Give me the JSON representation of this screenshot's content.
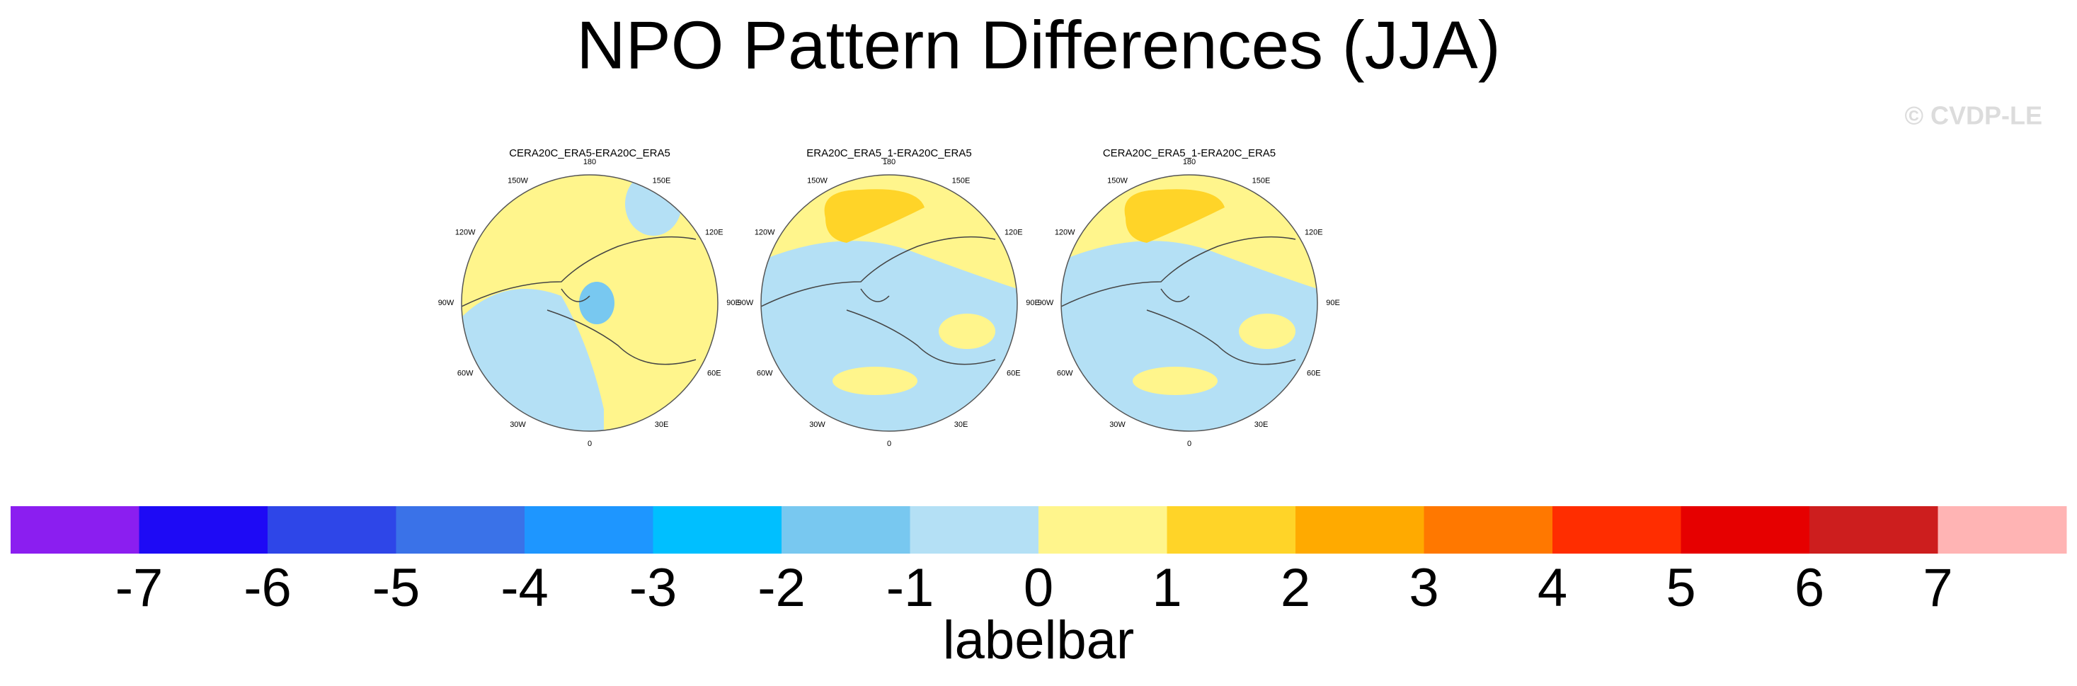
{
  "title": "NPO Pattern Differences (JJA)",
  "watermark": "© CVDP-LE",
  "longitudes": [
    "180",
    "150E",
    "120E",
    "90E",
    "60E",
    "30E",
    "0",
    "30W",
    "60W",
    "90W",
    "120W",
    "150W"
  ],
  "panels": [
    {
      "title": "CERA20C_ERA5-ERA20C_ERA5"
    },
    {
      "title": "ERA20C_ERA5_1-ERA20C_ERA5"
    },
    {
      "title": "CERA20C_ERA5_1-ERA20C_ERA5"
    }
  ],
  "colorbar": {
    "colors": [
      "#8b1ef0",
      "#1e0af5",
      "#2e46e8",
      "#3a72e8",
      "#1e96ff",
      "#00bfff",
      "#78c8f0",
      "#b4e0f5",
      "#fff58c",
      "#ffd428",
      "#ffaa00",
      "#ff7800",
      "#ff2d00",
      "#e60000",
      "#cd1e1e",
      "#ffb4b4"
    ],
    "ticks": [
      -7,
      -6,
      -5,
      -4,
      -3,
      -2,
      -1,
      0,
      1,
      2,
      3,
      4,
      5,
      6,
      7
    ],
    "label": "labelbar"
  }
}
